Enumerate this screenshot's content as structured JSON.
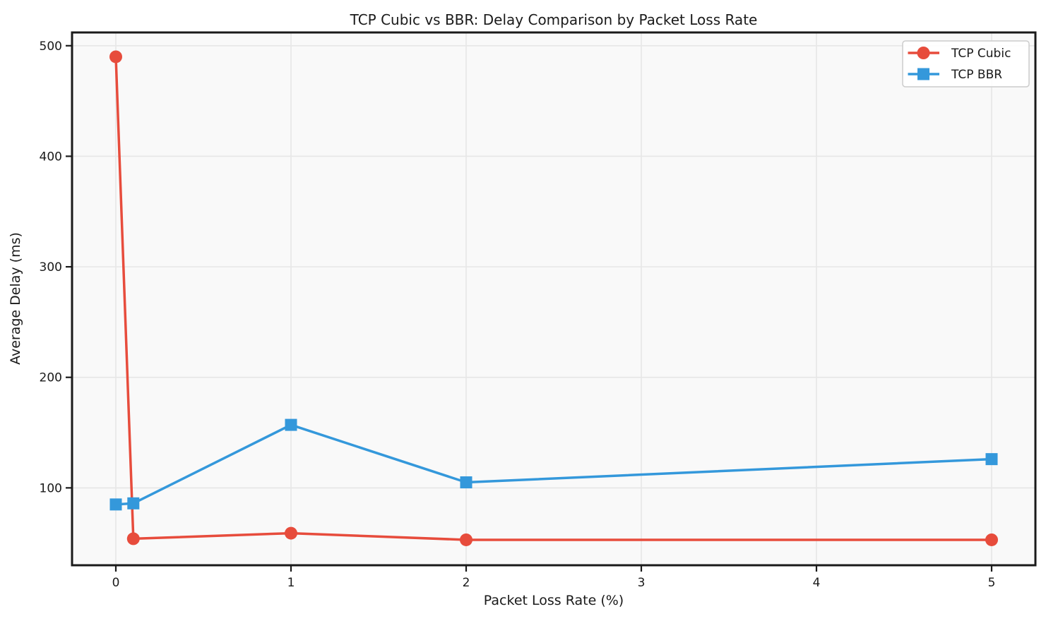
{
  "chart_data": {
    "type": "line",
    "title": "TCP Cubic vs BBR: Delay Comparison by Packet Loss Rate",
    "xlabel": "Packet Loss Rate (%)",
    "ylabel": "Average Delay (ms)",
    "x": [
      0,
      0.1,
      1,
      2,
      5
    ],
    "series": [
      {
        "name": "TCP Cubic",
        "color": "#e74c3c",
        "marker": "circle",
        "values": [
          490,
          54,
          59,
          53,
          53
        ]
      },
      {
        "name": "TCP BBR",
        "color": "#3498db",
        "marker": "square",
        "values": [
          85,
          86,
          157,
          105,
          126
        ]
      }
    ],
    "xticks": [
      0,
      1,
      2,
      3,
      4,
      5
    ],
    "yticks": [
      100,
      200,
      300,
      400,
      500
    ],
    "xlim": [
      -0.25,
      5.25
    ],
    "ylim": [
      30,
      512
    ],
    "grid": true,
    "legend": {
      "position": "upper right",
      "entries": [
        "TCP Cubic",
        "TCP BBR"
      ]
    },
    "style": {
      "figure_background": "#ffffff",
      "plot_background": "#f9f9f9",
      "grid_color": "#e7e7e7",
      "axis_color": "#1a1a1a",
      "text_color": "#1a1a1a"
    }
  }
}
